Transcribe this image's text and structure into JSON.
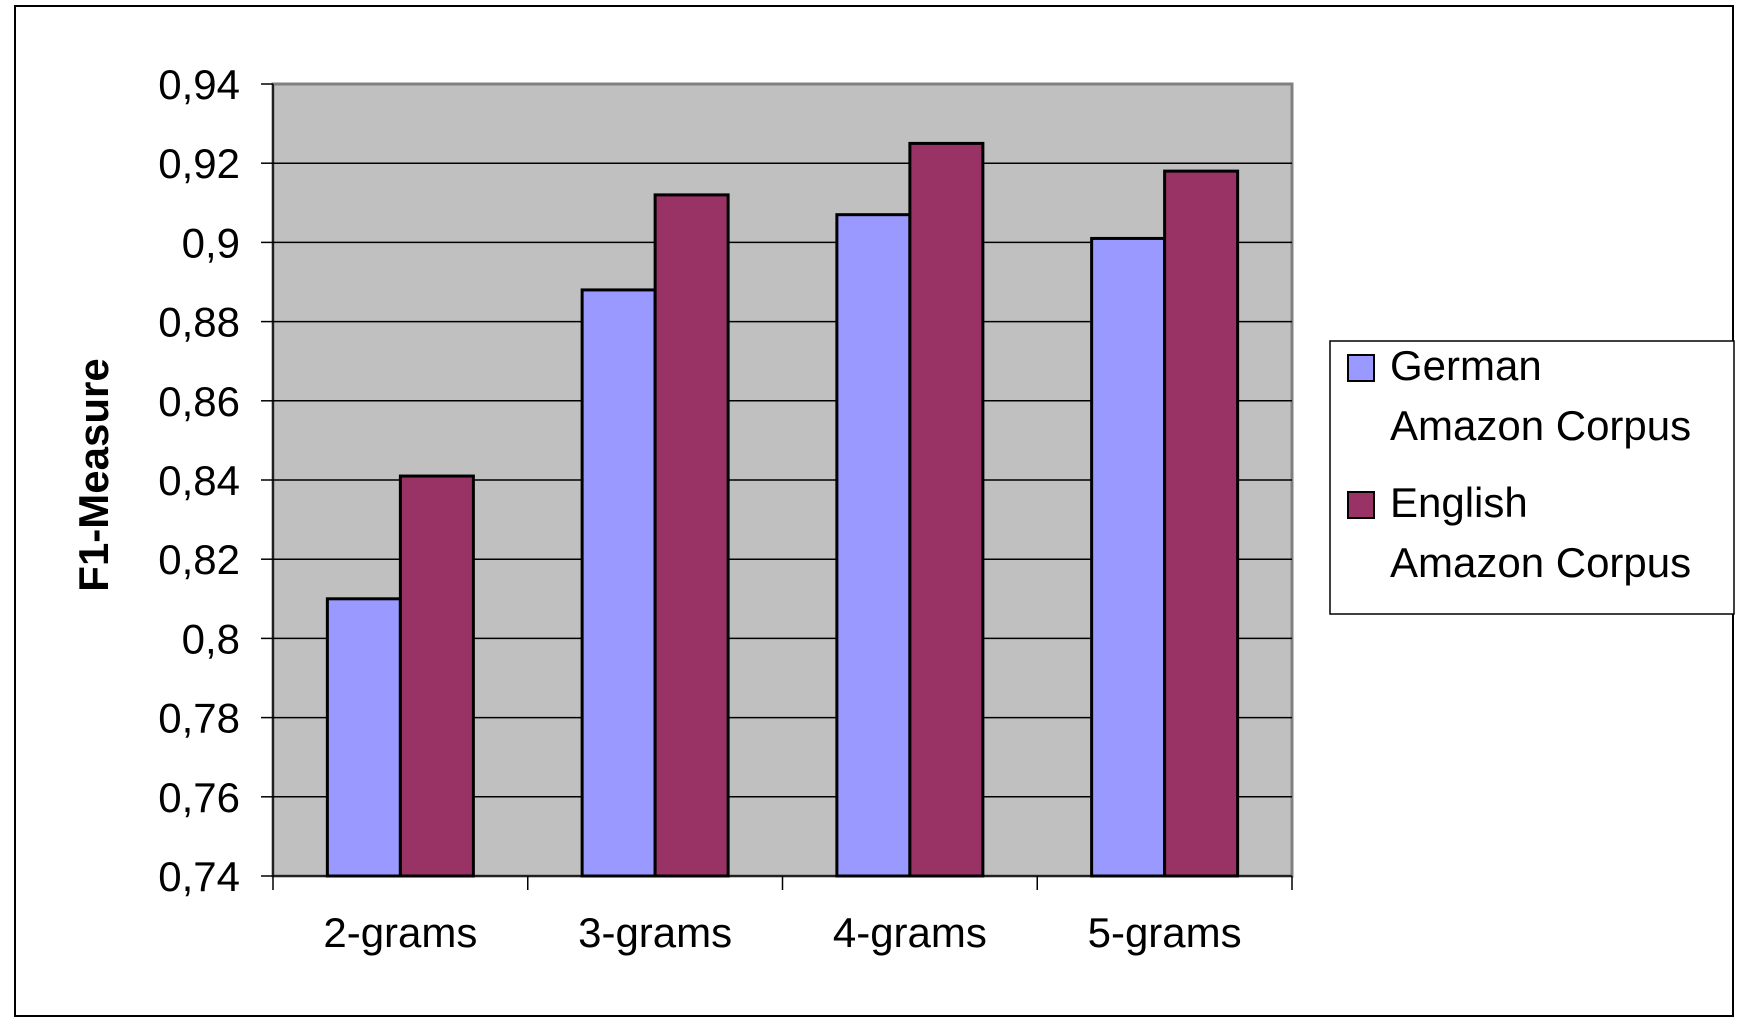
{
  "chart_data": {
    "type": "bar",
    "title": "",
    "xlabel": "",
    "ylabel": "F1-Measure",
    "ylim": [
      0.74,
      0.94
    ],
    "yticks": [
      0.74,
      0.76,
      0.78,
      0.8,
      0.82,
      0.84,
      0.86,
      0.88,
      0.9,
      0.92,
      0.94
    ],
    "ytick_labels": [
      "0,74",
      "0,76",
      "0,78",
      "0,8",
      "0,82",
      "0,84",
      "0,86",
      "0,88",
      "0,9",
      "0,92",
      "0,94"
    ],
    "categories": [
      "2-grams",
      "3-grams",
      "4-grams",
      "5-grams"
    ],
    "series": [
      {
        "name": "German Amazon Corpus",
        "legend_lines": [
          "German",
          "Amazon Corpus"
        ],
        "color": "#9999ff",
        "values": [
          0.81,
          0.888,
          0.907,
          0.901
        ]
      },
      {
        "name": "English Amazon Corpus",
        "legend_lines": [
          "English",
          "Amazon Corpus"
        ],
        "color": "#993366",
        "values": [
          0.841,
          0.912,
          0.925,
          0.918
        ]
      }
    ],
    "grid": true,
    "plot_background": "#c0c0c0",
    "legend_position": "right"
  }
}
